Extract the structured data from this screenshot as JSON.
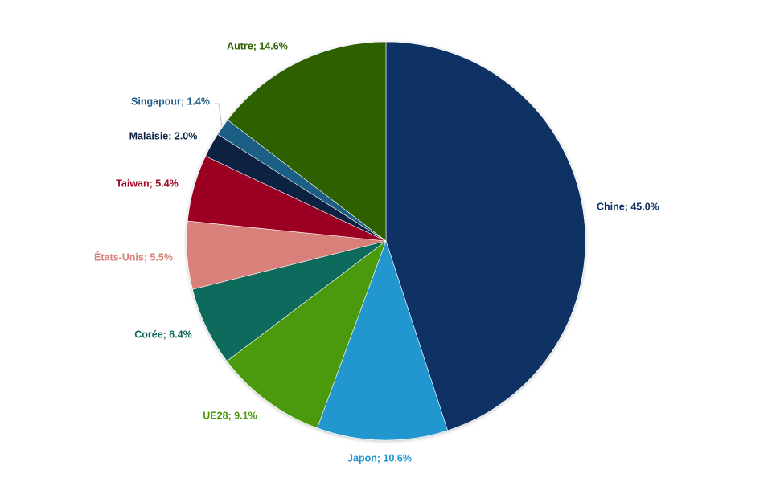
{
  "chart_data": {
    "type": "pie",
    "title": "",
    "start_angle_deg": 0,
    "direction": "clockwise",
    "legend": "none",
    "slices": [
      {
        "label": "Chine",
        "value": 45.0,
        "display": "Chine; 45.0%",
        "color": "#0c3263"
      },
      {
        "label": "Japon",
        "value": 10.6,
        "display": "Japon; 10.6%",
        "color": "#2196cf"
      },
      {
        "label": "UE28",
        "value": 9.1,
        "display": "UE28; 9.1%",
        "color": "#4c9a08"
      },
      {
        "label": "Corée",
        "value": 6.4,
        "display": "Corée; 6.4%",
        "color": "#0f6b5b"
      },
      {
        "label": "États-Unis",
        "value": 5.5,
        "display": "États-Unis; 5.5%",
        "color": "#d9807a"
      },
      {
        "label": "Taiwan",
        "value": 5.4,
        "display": "Taiwan; 5.4%",
        "color": "#9b0524"
      },
      {
        "label": "Malaisie",
        "value": 2.0,
        "display": "Malaisie; 2.0%",
        "color": "#0b2141"
      },
      {
        "label": "Singapour",
        "value": 1.4,
        "display": "Singapour; 1.4%",
        "color": "#1e5f86"
      },
      {
        "label": "Autre",
        "value": 14.6,
        "display": "Autre; 14.6%",
        "color": "#2e6002"
      }
    ]
  }
}
